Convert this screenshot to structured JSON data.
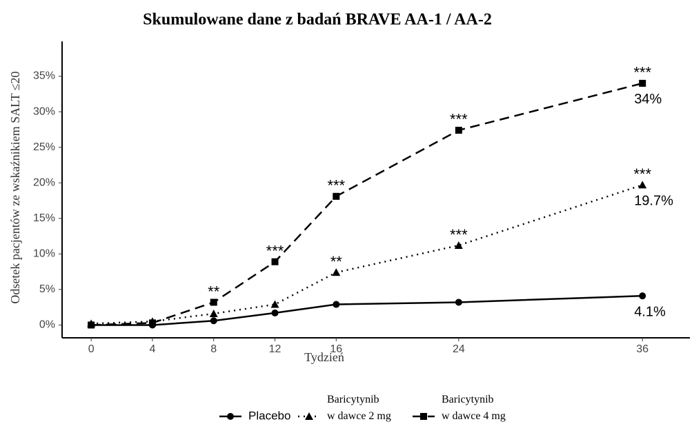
{
  "chart_data": {
    "type": "line",
    "title": "Skumulowane dane z badań BRAVE AA-1 / AA-2",
    "x_label": "Tydzień",
    "y_label": "Odsetek pacjentów ze wskaźnikiem SALT ≤20",
    "x": [
      0,
      4,
      8,
      12,
      16,
      24,
      36
    ],
    "xlim": [
      -1.9,
      39.1
    ],
    "xticks": [
      0,
      4,
      8,
      12,
      16,
      24,
      36
    ],
    "ylim": [
      -1.8,
      39.9
    ],
    "yticks": [
      {
        "value": 0,
        "label": "0%"
      },
      {
        "value": 5,
        "label": "5%"
      },
      {
        "value": 10,
        "label": "10%"
      },
      {
        "value": 15,
        "label": "15%"
      },
      {
        "value": 20,
        "label": "20%"
      },
      {
        "value": 25,
        "label": "25%"
      },
      {
        "value": 30,
        "label": "30%"
      },
      {
        "value": 35,
        "label": "35%"
      }
    ],
    "grid": false,
    "legend": "bottom",
    "series": [
      {
        "name": "Placebo",
        "color": "#000000",
        "dash": "solid",
        "marker": "circle",
        "values": [
          0,
          0,
          0.6,
          1.7,
          2.9,
          3.2,
          4.1
        ],
        "value_labels": [
          null,
          null,
          null,
          null,
          null,
          null,
          "4.1%"
        ],
        "significance": [
          null,
          null,
          null,
          null,
          null,
          null,
          null
        ]
      },
      {
        "name": "Baricytynib\nw dawce 2 mg",
        "color": "#000000",
        "dash": "dotted",
        "marker": "triangle",
        "values": [
          0.2,
          0.5,
          1.6,
          2.9,
          7.4,
          11.2,
          19.7
        ],
        "value_labels": [
          null,
          null,
          null,
          null,
          null,
          null,
          "19.7%"
        ],
        "significance": [
          null,
          null,
          null,
          null,
          "**",
          "***",
          "***"
        ]
      },
      {
        "name": "Baricytynib\nw dawce 4 mg",
        "color": "#000000",
        "dash": "dashed",
        "marker": "square",
        "values": [
          0,
          0.3,
          3.2,
          8.9,
          18.1,
          27.4,
          34
        ],
        "value_labels": [
          null,
          null,
          null,
          null,
          null,
          null,
          "34%"
        ],
        "significance": [
          null,
          null,
          "**",
          "***",
          "***",
          "***",
          "***"
        ]
      }
    ]
  }
}
